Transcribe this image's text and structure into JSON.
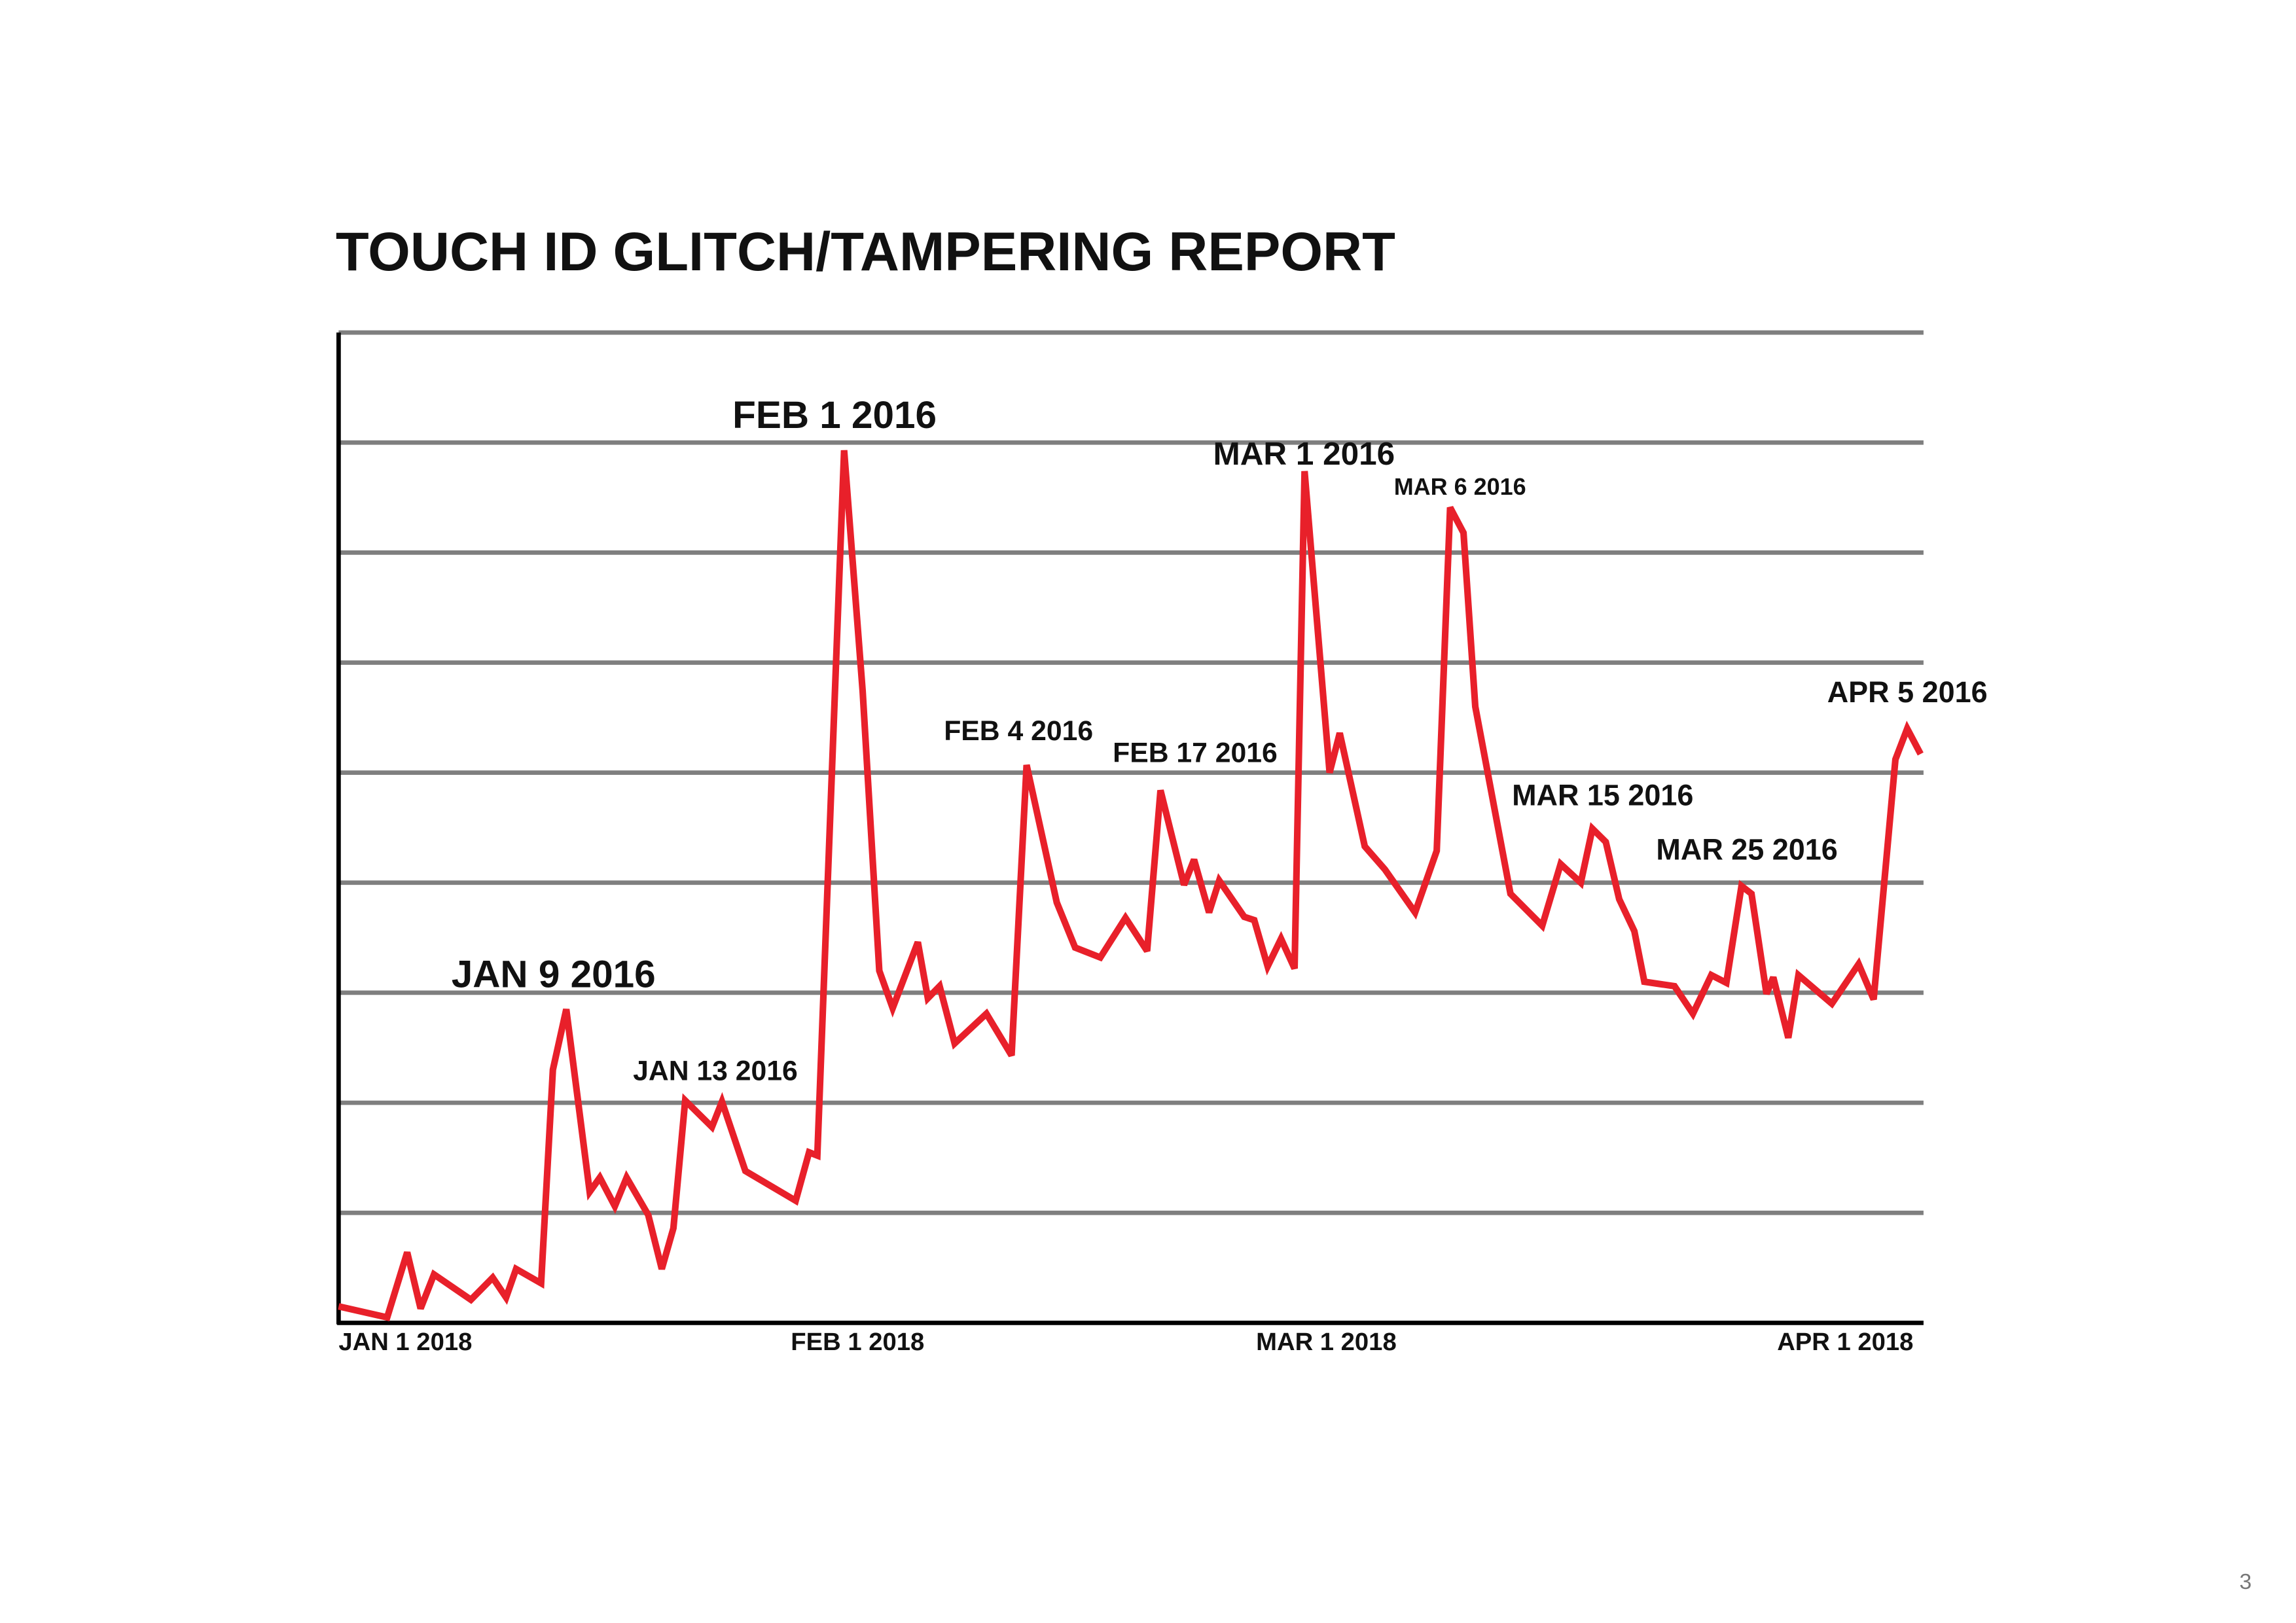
{
  "chart_data": {
    "type": "line",
    "title": "TOUCH ID GLITCH/TAMPERING REPORT",
    "x": [
      0,
      2.9,
      4.1,
      4.9,
      5.7,
      7.9,
      9.2,
      10.0,
      10.6,
      12.1,
      12.8,
      13.6,
      15.0,
      15.6,
      16.5,
      17.2,
      18.5,
      19.3,
      20.0,
      20.7,
      22.3,
      22.9,
      24.3,
      27.3,
      28.1,
      28.6,
      30.2,
      31.3,
      32.3,
      33.1,
      34.6,
      35.2,
      35.9,
      36.8,
      38.7,
      40.2,
      41.1,
      42.9,
      44.0,
      45.5,
      47.0,
      48.3,
      49.1,
      50.5,
      51.1,
      52.0,
      52.6,
      54.1,
      54.7,
      55.5,
      56.3,
      57.1,
      57.7,
      58.5,
      59.2,
      59.8,
      61.3,
      62.5,
      64.3,
      65.6,
      66.4,
      67.2,
      67.9,
      70.0,
      71.9,
      73.0,
      74.2,
      74.9,
      75.7,
      76.5,
      77.4,
      78.0,
      79.8,
      80.9,
      82.0,
      82.9,
      83.8,
      84.4,
      85.3,
      85.7,
      86.6,
      87.2,
      89.2,
      90.8,
      91.7,
      93.0,
      93.7,
      94.5
    ],
    "values": [
      0.15,
      0.05,
      0.64,
      0.13,
      0.44,
      0.21,
      0.41,
      0.23,
      0.49,
      0.36,
      2.3,
      2.85,
      1.19,
      1.32,
      1.06,
      1.32,
      0.98,
      0.49,
      0.86,
      2.02,
      1.78,
      2.01,
      1.38,
      1.11,
      1.55,
      1.52,
      7.93,
      5.74,
      3.2,
      2.86,
      3.46,
      2.95,
      3.06,
      2.54,
      2.81,
      2.43,
      5.07,
      3.82,
      3.41,
      3.32,
      3.68,
      3.38,
      4.84,
      3.98,
      4.21,
      3.73,
      4.02,
      3.69,
      3.66,
      3.24,
      3.49,
      3.22,
      7.74,
      6.27,
      5.0,
      5.36,
      4.33,
      4.12,
      3.73,
      4.29,
      7.41,
      7.18,
      5.6,
      3.9,
      3.61,
      4.17,
      4.0,
      4.49,
      4.37,
      3.85,
      3.56,
      3.1,
      3.06,
      2.81,
      3.16,
      3.09,
      3.97,
      3.9,
      2.99,
      3.14,
      2.59,
      3.16,
      2.9,
      3.26,
      2.94,
      5.12,
      5.4,
      5.17
    ],
    "color": "#e8202a",
    "xlim": [
      0,
      94.5
    ],
    "xticks": [
      {
        "value": 0,
        "label": "JAN 1 2018"
      },
      {
        "value": 31,
        "label": "FEB 1 2018"
      },
      {
        "value": 59,
        "label": "MAR 1 2018"
      },
      {
        "value": 90,
        "label": "APR 1 2018"
      }
    ],
    "ylim": [
      0,
      9
    ],
    "yticks": [
      1,
      2,
      3,
      4,
      5,
      6,
      7,
      8,
      9
    ],
    "ytick_labels": false,
    "grid": true,
    "annotations": [
      "JAN 9 2016",
      "JAN 13 2016",
      "FEB 1 2016",
      "FEB 4 2016",
      "FEB 17 2016",
      "MAR 1 2016",
      "MAR 6 2016",
      "MAR 15 2016",
      "MAR 25 2016",
      "APR 5 2016"
    ]
  },
  "page_number": "3"
}
